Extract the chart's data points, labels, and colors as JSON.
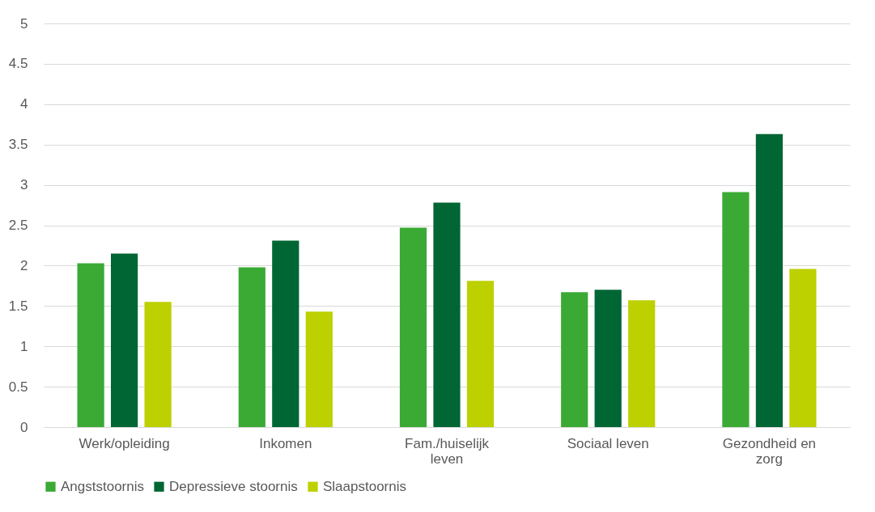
{
  "chart_data": {
    "type": "bar",
    "categories": [
      "Werk/opleiding",
      "Inkomen",
      "Fam./huiselijk leven",
      "Sociaal leven",
      "Gezondheid en zorg"
    ],
    "series": [
      {
        "name": "Angststoornis",
        "color": "#3aaa35",
        "values": [
          2.03,
          1.98,
          2.47,
          1.67,
          2.91
        ]
      },
      {
        "name": "Depressieve stoornis",
        "color": "#006633",
        "values": [
          2.15,
          2.31,
          2.78,
          1.7,
          3.63
        ]
      },
      {
        "name": "Slaapstoornis",
        "color": "#bdd000",
        "values": [
          1.55,
          1.43,
          1.81,
          1.57,
          1.96
        ]
      }
    ],
    "ylim": [
      0,
      5
    ],
    "yticks": [
      0,
      0.5,
      1,
      1.5,
      2,
      2.5,
      3,
      3.5,
      4,
      4.5,
      5
    ],
    "grid": "y",
    "legend": "bottom"
  }
}
